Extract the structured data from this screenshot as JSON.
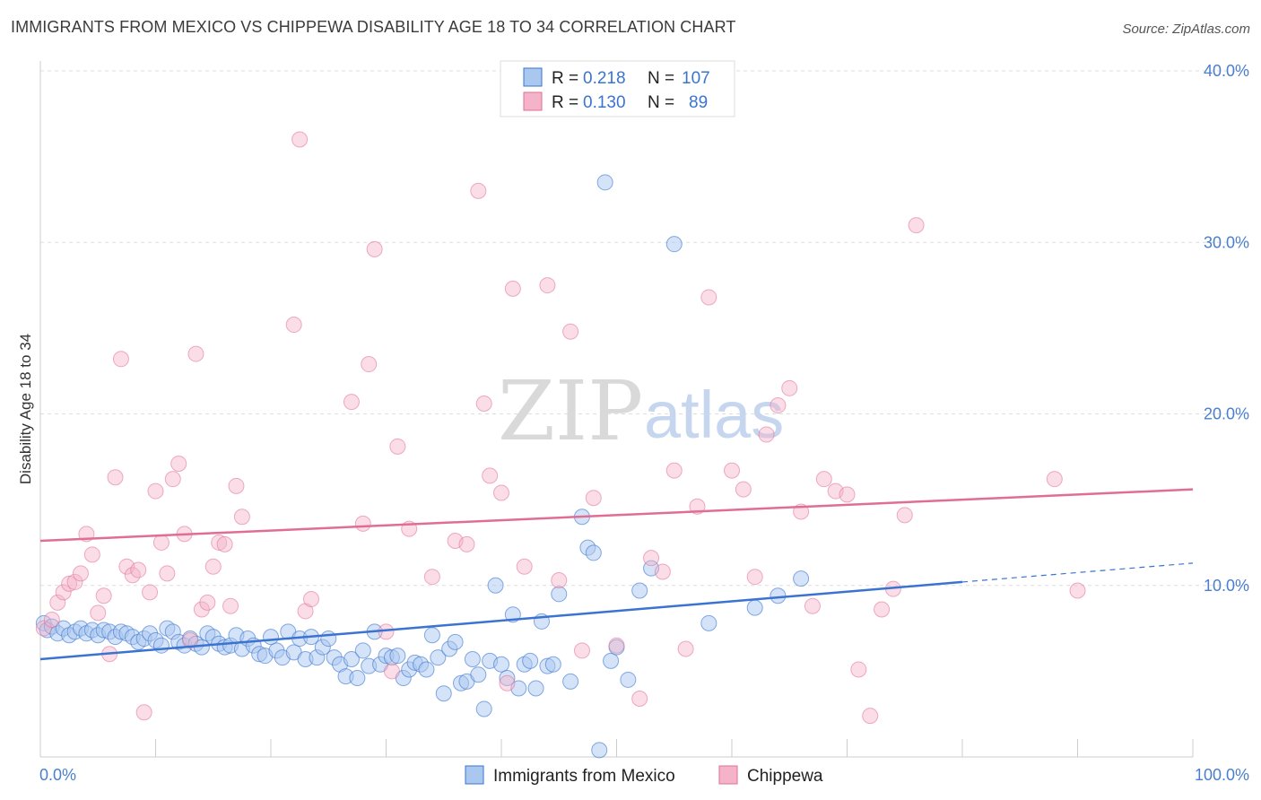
{
  "header": {
    "title": "IMMIGRANTS FROM MEXICO VS CHIPPEWA DISABILITY AGE 18 TO 34 CORRELATION CHART",
    "source": "Source: ZipAtlas.com"
  },
  "watermark": {
    "zip": "ZIP",
    "atlas": "atlas"
  },
  "colors": {
    "mexico": "#3a74d0",
    "mexico_fill": "#a9c7ef",
    "chippewa": "#e06d96",
    "chippewa_fill": "#f4b3c9",
    "grid": "#dddddd",
    "axis_label": "#4a7fcf"
  },
  "legend": {
    "r_label": "R =",
    "n_label": "N =",
    "mexico": {
      "r": "0.218",
      "n": "107"
    },
    "chippewa": {
      "r": "0.130",
      "n": "89"
    }
  },
  "chart_data": {
    "type": "scatter",
    "title": "IMMIGRANTS FROM MEXICO VS CHIPPEWA DISABILITY AGE 18 TO 34 CORRELATION CHART",
    "xlabel": "",
    "ylabel": "Disability Age 18 to 34",
    "xlim": [
      0,
      100
    ],
    "ylim": [
      0,
      40
    ],
    "x_tick_labels": [
      "0.0%",
      "100.0%"
    ],
    "y_ticks": [
      10,
      20,
      30,
      40
    ],
    "y_tick_labels": [
      "10.0%",
      "20.0%",
      "30.0%",
      "40.0%"
    ],
    "grid": true,
    "legend_position": "top-center",
    "series": [
      {
        "name": "Immigrants from Mexico",
        "color": "#3a74d0",
        "trend": {
          "x": [
            0,
            80
          ],
          "y": [
            5.7,
            10.2
          ],
          "dashed_x": [
            80,
            100
          ],
          "dashed_y": [
            10.2,
            11.3
          ]
        },
        "points": [
          [
            0.3,
            7.8
          ],
          [
            0.6,
            7.4
          ],
          [
            1,
            7.6
          ],
          [
            1.5,
            7.2
          ],
          [
            2,
            7.5
          ],
          [
            2.5,
            7.1
          ],
          [
            3,
            7.3
          ],
          [
            3.5,
            7.5
          ],
          [
            4,
            7.2
          ],
          [
            4.5,
            7.4
          ],
          [
            5,
            7.1
          ],
          [
            5.5,
            7.4
          ],
          [
            6,
            7.3
          ],
          [
            6.5,
            7.0
          ],
          [
            7,
            7.3
          ],
          [
            7.5,
            7.2
          ],
          [
            8,
            7.0
          ],
          [
            8.5,
            6.7
          ],
          [
            9,
            6.9
          ],
          [
            9.5,
            7.2
          ],
          [
            10,
            6.8
          ],
          [
            10.5,
            6.5
          ],
          [
            11,
            7.5
          ],
          [
            11.5,
            7.3
          ],
          [
            12,
            6.7
          ],
          [
            12.5,
            6.5
          ],
          [
            13,
            6.9
          ],
          [
            13.5,
            6.6
          ],
          [
            14,
            6.4
          ],
          [
            14.5,
            7.2
          ],
          [
            15,
            7.0
          ],
          [
            15.5,
            6.6
          ],
          [
            16,
            6.4
          ],
          [
            16.5,
            6.5
          ],
          [
            17,
            7.1
          ],
          [
            17.5,
            6.3
          ],
          [
            18,
            6.9
          ],
          [
            18.5,
            6.5
          ],
          [
            19,
            6.0
          ],
          [
            19.5,
            5.9
          ],
          [
            20,
            7.0
          ],
          [
            20.5,
            6.2
          ],
          [
            21,
            5.8
          ],
          [
            21.5,
            7.3
          ],
          [
            22,
            6.1
          ],
          [
            22.5,
            6.9
          ],
          [
            23,
            5.7
          ],
          [
            23.5,
            7.0
          ],
          [
            24,
            5.8
          ],
          [
            24.5,
            6.4
          ],
          [
            25,
            6.9
          ],
          [
            25.5,
            5.8
          ],
          [
            26,
            5.4
          ],
          [
            26.5,
            4.7
          ],
          [
            27,
            5.7
          ],
          [
            27.5,
            4.6
          ],
          [
            28,
            6.2
          ],
          [
            28.5,
            5.3
          ],
          [
            29,
            7.3
          ],
          [
            29.5,
            5.4
          ],
          [
            30,
            5.9
          ],
          [
            30.5,
            5.8
          ],
          [
            31,
            5.9
          ],
          [
            31.5,
            4.6
          ],
          [
            32,
            5.1
          ],
          [
            32.5,
            5.5
          ],
          [
            33,
            5.4
          ],
          [
            33.5,
            5.1
          ],
          [
            34,
            7.1
          ],
          [
            34.5,
            5.8
          ],
          [
            35,
            3.7
          ],
          [
            35.5,
            6.3
          ],
          [
            36,
            6.7
          ],
          [
            36.5,
            4.3
          ],
          [
            37,
            4.4
          ],
          [
            37.5,
            5.7
          ],
          [
            38,
            4.8
          ],
          [
            38.5,
            2.8
          ],
          [
            39,
            5.6
          ],
          [
            39.5,
            10.0
          ],
          [
            40,
            5.4
          ],
          [
            40.5,
            4.6
          ],
          [
            41,
            8.3
          ],
          [
            41.5,
            4.0
          ],
          [
            42,
            5.4
          ],
          [
            42.5,
            5.6
          ],
          [
            43,
            4.0
          ],
          [
            43.5,
            7.9
          ],
          [
            44,
            5.3
          ],
          [
            44.5,
            5.4
          ],
          [
            45,
            9.5
          ],
          [
            46,
            4.4
          ],
          [
            47,
            14.0
          ],
          [
            47.5,
            12.2
          ],
          [
            48,
            11.9
          ],
          [
            48.5,
            0.4
          ],
          [
            49.5,
            5.6
          ],
          [
            50,
            6.4
          ],
          [
            51,
            4.5
          ],
          [
            52,
            9.7
          ],
          [
            53,
            11.0
          ],
          [
            55,
            29.9
          ],
          [
            58,
            7.8
          ],
          [
            62,
            8.7
          ],
          [
            64,
            9.4
          ],
          [
            66,
            10.4
          ],
          [
            49,
            33.5
          ]
        ]
      },
      {
        "name": "Chippewa",
        "color": "#e06d96",
        "trend": {
          "x": [
            0,
            100
          ],
          "y": [
            12.6,
            15.6
          ]
        },
        "points": [
          [
            0.3,
            7.5
          ],
          [
            1,
            8.0
          ],
          [
            1.5,
            9.0
          ],
          [
            2,
            9.6
          ],
          [
            2.5,
            10.1
          ],
          [
            3,
            10.2
          ],
          [
            3.5,
            10.7
          ],
          [
            4,
            13.0
          ],
          [
            4.5,
            11.8
          ],
          [
            5,
            8.4
          ],
          [
            5.5,
            9.4
          ],
          [
            6,
            6.0
          ],
          [
            6.5,
            16.3
          ],
          [
            7,
            23.2
          ],
          [
            7.5,
            11.1
          ],
          [
            8,
            10.6
          ],
          [
            8.5,
            10.9
          ],
          [
            9,
            2.6
          ],
          [
            9.5,
            9.6
          ],
          [
            10,
            15.5
          ],
          [
            10.5,
            12.5
          ],
          [
            11,
            10.7
          ],
          [
            11.5,
            16.2
          ],
          [
            12,
            17.1
          ],
          [
            12.5,
            13.0
          ],
          [
            13,
            6.8
          ],
          [
            13.5,
            23.5
          ],
          [
            14,
            8.6
          ],
          [
            14.5,
            9.0
          ],
          [
            15,
            11.1
          ],
          [
            15.5,
            12.5
          ],
          [
            16,
            12.4
          ],
          [
            16.5,
            8.8
          ],
          [
            17,
            15.8
          ],
          [
            17.5,
            14.0
          ],
          [
            22,
            25.2
          ],
          [
            22.5,
            36.0
          ],
          [
            23,
            8.5
          ],
          [
            23.5,
            9.2
          ],
          [
            27,
            20.7
          ],
          [
            28,
            13.6
          ],
          [
            28.5,
            22.9
          ],
          [
            29,
            29.6
          ],
          [
            30,
            7.3
          ],
          [
            30.5,
            5.0
          ],
          [
            31,
            18.1
          ],
          [
            32,
            13.3
          ],
          [
            34,
            10.5
          ],
          [
            36,
            12.6
          ],
          [
            37,
            12.4
          ],
          [
            38,
            33.0
          ],
          [
            38.5,
            20.6
          ],
          [
            39,
            16.4
          ],
          [
            40,
            15.4
          ],
          [
            40.5,
            4.3
          ],
          [
            41,
            27.3
          ],
          [
            42,
            11.1
          ],
          [
            44,
            27.5
          ],
          [
            45,
            10.3
          ],
          [
            46,
            24.8
          ],
          [
            47,
            6.2
          ],
          [
            48,
            15.1
          ],
          [
            50,
            6.5
          ],
          [
            52,
            3.4
          ],
          [
            53,
            11.6
          ],
          [
            54,
            10.8
          ],
          [
            55,
            16.7
          ],
          [
            56,
            6.3
          ],
          [
            57,
            14.6
          ],
          [
            58,
            26.8
          ],
          [
            60,
            16.7
          ],
          [
            61,
            15.6
          ],
          [
            62,
            10.5
          ],
          [
            63,
            18.8
          ],
          [
            64,
            20.5
          ],
          [
            65,
            21.5
          ],
          [
            66,
            14.3
          ],
          [
            67,
            8.8
          ],
          [
            68,
            16.2
          ],
          [
            69,
            15.5
          ],
          [
            70,
            15.3
          ],
          [
            71,
            5.1
          ],
          [
            72,
            2.4
          ],
          [
            73,
            8.6
          ],
          [
            74,
            9.8
          ],
          [
            75,
            14.1
          ],
          [
            76,
            31.0
          ],
          [
            88,
            16.2
          ],
          [
            90,
            9.7
          ]
        ]
      }
    ]
  },
  "bottom_legend": {
    "mexico_label": "Immigrants from Mexico",
    "chippewa_label": "Chippewa"
  }
}
